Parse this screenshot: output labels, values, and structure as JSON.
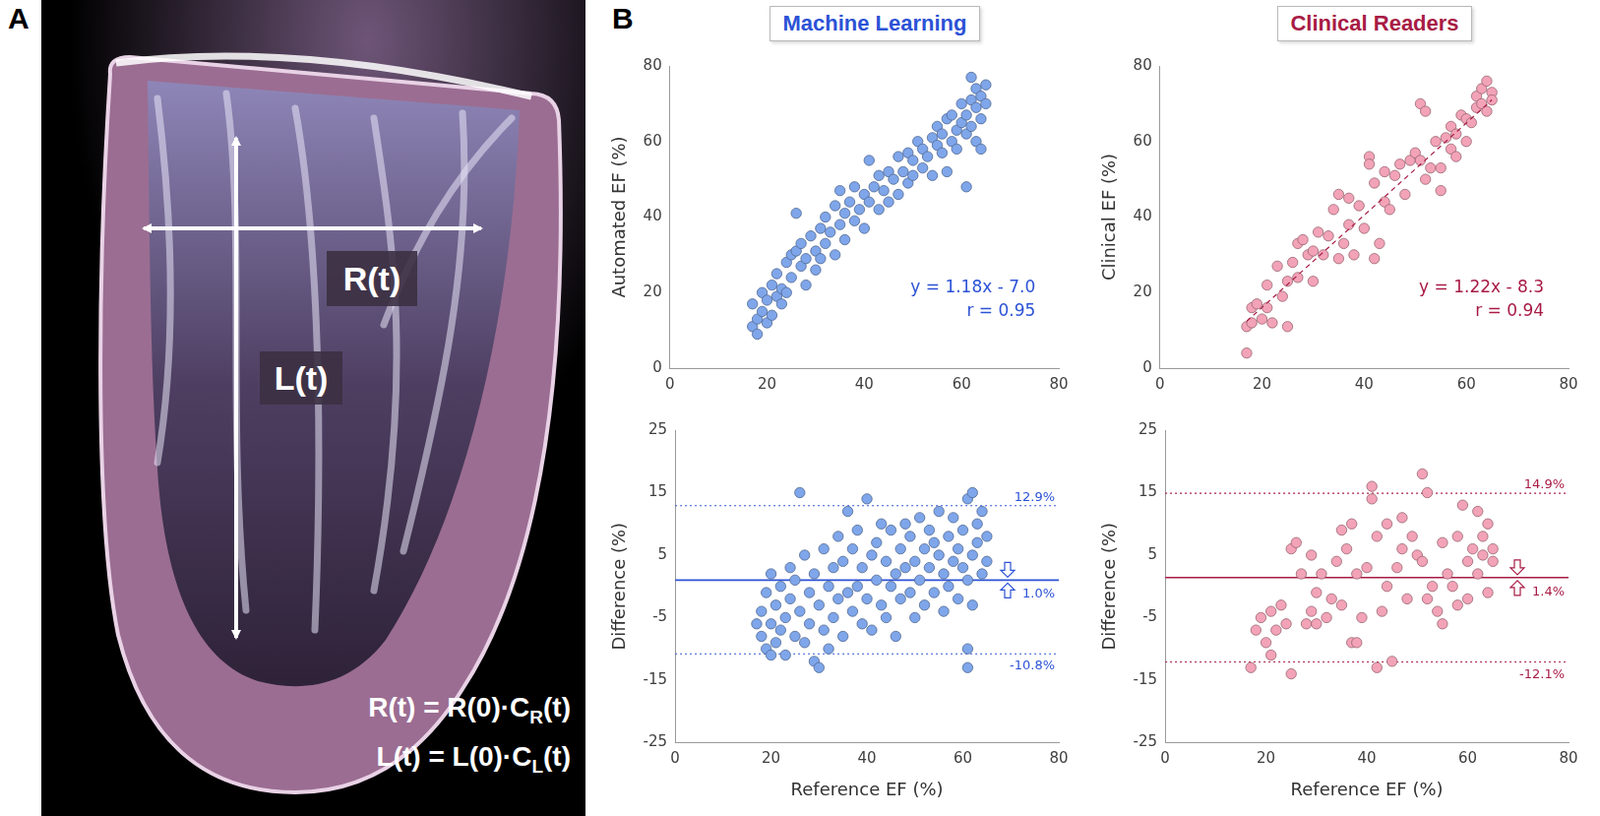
{
  "panel_labels": [
    "A",
    "B"
  ],
  "diagram": {
    "labels": [
      "R(t)",
      "L(t)"
    ],
    "equations": [
      {
        "text": "R(t) = R(0)·C",
        "subscript": "R",
        "after": "(t)"
      },
      {
        "text": "L(t) = L(0)·C",
        "subscript": "L",
        "after": "(t)"
      }
    ]
  },
  "chart_data": [
    {
      "type": "scatter",
      "title": "Machine Learning",
      "color": "#2c52d6",
      "y_label": "Automated EF (%)",
      "annotations": [
        "y = 1.18x - 7.0",
        "r = 0.95"
      ],
      "grid": false,
      "marker": "circle",
      "xlim": [
        0,
        80
      ],
      "xticks": [
        0,
        20,
        40,
        60,
        80
      ],
      "ylim": [
        0,
        80
      ],
      "yticks": [
        0,
        20,
        40,
        60,
        80
      ],
      "series": [
        {
          "color": "#7fa6ea",
          "x": [
            17,
            17,
            18,
            18,
            19,
            19,
            20,
            20,
            21,
            21,
            22,
            22,
            23,
            23,
            24,
            24,
            25,
            25,
            26,
            26,
            27,
            27,
            28,
            28,
            29,
            30,
            30,
            31,
            31,
            32,
            32,
            33,
            34,
            34,
            35,
            35,
            36,
            36,
            37,
            38,
            38,
            39,
            40,
            40,
            41,
            41,
            42,
            43,
            43,
            44,
            45,
            45,
            46,
            47,
            47,
            48,
            49,
            49,
            50,
            50,
            51,
            52,
            52,
            53,
            54,
            54,
            55,
            55,
            56,
            56,
            57,
            57,
            58,
            58,
            59,
            59,
            60,
            60,
            61,
            61,
            61,
            62,
            62,
            62,
            63,
            63,
            63,
            64,
            64,
            64,
            65,
            65
          ],
          "values": [
            11,
            17,
            13,
            9,
            15,
            20,
            12,
            18,
            22,
            14,
            19,
            25,
            17,
            21,
            28,
            20,
            30,
            24,
            41,
            31,
            27,
            33,
            29,
            22,
            35,
            31,
            26,
            37,
            29,
            33,
            40,
            36,
            30,
            43,
            38,
            47,
            41,
            34,
            44,
            39,
            48,
            42,
            46,
            37,
            55,
            44,
            48,
            42,
            51,
            47,
            52,
            44,
            50,
            56,
            46,
            52,
            49,
            57,
            55,
            51,
            60,
            53,
            58,
            56,
            61,
            51,
            59,
            64,
            57,
            62,
            66,
            52,
            60,
            67,
            63,
            58,
            65,
            70,
            48,
            62,
            67,
            77,
            64,
            71,
            60,
            69,
            74,
            66,
            72,
            58,
            70,
            75
          ]
        }
      ]
    },
    {
      "type": "scatter",
      "title": "Clinical Readers",
      "color": "#a81b45",
      "y_label": "Clinical EF (%)",
      "annotations": [
        "y = 1.22x - 8.3",
        "r = 0.94"
      ],
      "grid": false,
      "marker": "circle",
      "xlim": [
        0,
        80
      ],
      "xticks": [
        0,
        20,
        40,
        60,
        80
      ],
      "ylim": [
        0,
        80
      ],
      "yticks": [
        0,
        20,
        40,
        60,
        80
      ],
      "fit_line": {
        "x": [
          17,
          65
        ],
        "values": [
          12.4,
          71.0
        ],
        "line_style": "dashed"
      },
      "series": [
        {
          "color": "#f3a3b7",
          "x": [
            17,
            17,
            18,
            18,
            19,
            20,
            21,
            21,
            22,
            23,
            24,
            25,
            25,
            26,
            27,
            27,
            28,
            29,
            30,
            30,
            31,
            32,
            33,
            34,
            35,
            35,
            36,
            37,
            37,
            38,
            39,
            40,
            41,
            41,
            42,
            42,
            43,
            44,
            44,
            45,
            46,
            47,
            48,
            49,
            50,
            51,
            51,
            52,
            52,
            53,
            54,
            55,
            55,
            56,
            57,
            57,
            58,
            58,
            59,
            60,
            60,
            61,
            62,
            62,
            63,
            63,
            64,
            64,
            65,
            65
          ],
          "values": [
            4,
            11,
            16,
            12,
            17,
            13,
            22,
            16,
            12,
            27,
            19,
            23,
            11,
            28,
            33,
            24,
            34,
            30,
            23,
            31,
            36,
            30,
            35,
            42,
            29,
            46,
            33,
            45,
            38,
            30,
            43,
            37,
            56,
            54,
            49,
            29,
            33,
            44,
            52,
            42,
            51,
            54,
            46,
            55,
            57,
            55,
            70,
            68,
            50,
            53,
            60,
            53,
            47,
            61,
            58,
            64,
            62,
            56,
            67,
            60,
            66,
            65,
            72,
            69,
            74,
            70,
            68,
            76,
            73,
            71
          ]
        }
      ]
    },
    {
      "type": "scatter",
      "color": "#2c52d6",
      "x_label": "Reference EF (%)",
      "y_label": "Difference (%)",
      "grid": false,
      "marker": "circle",
      "xlim": [
        0,
        80
      ],
      "xticks": [
        0,
        20,
        40,
        60,
        80
      ],
      "ylim": [
        -25,
        25
      ],
      "yticks": [
        -25,
        -15,
        -5,
        5,
        15,
        25
      ],
      "reference_lines": [
        {
          "value": 12.9,
          "label": "12.9%",
          "line_style": "dotted"
        },
        {
          "value": 1.0,
          "label": "1.0%",
          "line_style": "solid"
        },
        {
          "value": -10.8,
          "label": "-10.8%",
          "line_style": "dotted"
        }
      ],
      "series": [
        {
          "color": "#7fa6ea",
          "x": [
            17,
            18,
            18,
            19,
            19,
            20,
            20,
            20,
            21,
            21,
            22,
            22,
            23,
            23,
            24,
            24,
            25,
            25,
            26,
            26,
            27,
            27,
            28,
            28,
            29,
            29,
            30,
            30,
            31,
            31,
            32,
            32,
            33,
            33,
            34,
            34,
            35,
            35,
            36,
            36,
            37,
            37,
            38,
            38,
            39,
            39,
            40,
            40,
            41,
            41,
            42,
            42,
            43,
            43,
            44,
            44,
            45,
            45,
            46,
            46,
            47,
            47,
            48,
            48,
            49,
            49,
            50,
            50,
            51,
            51,
            52,
            52,
            53,
            53,
            54,
            54,
            55,
            55,
            56,
            56,
            57,
            57,
            58,
            58,
            59,
            59,
            60,
            60,
            61,
            61,
            61,
            61,
            62,
            62,
            62,
            63,
            63,
            64,
            64,
            65,
            65
          ],
          "values": [
            -6,
            -8,
            -4,
            -10,
            -1,
            -11,
            -6,
            2,
            -3,
            -9,
            -7,
            0,
            -5,
            -11,
            -2,
            3,
            -8,
            1,
            15,
            -4,
            5,
            -9,
            -1,
            -6,
            2,
            -12,
            -3,
            -13,
            6,
            -7,
            0,
            -10,
            3,
            -5,
            8,
            -2,
            -8,
            4,
            12,
            -1,
            6,
            -4,
            0,
            9,
            -6,
            3,
            14,
            -2,
            5,
            -7,
            1,
            7,
            -3,
            10,
            4,
            -5,
            9,
            0,
            2,
            -8,
            6,
            -2,
            10,
            3,
            -1,
            8,
            4,
            -5,
            11,
            1,
            6,
            -3,
            3,
            9,
            7,
            -1,
            5,
            12,
            2,
            -4,
            8,
            0,
            11,
            4,
            -2,
            6,
            9,
            3,
            -13,
            -10,
            14,
            1,
            15,
            5,
            -3,
            7,
            10,
            2,
            12,
            4,
            8
          ]
        }
      ]
    },
    {
      "type": "scatter",
      "color": "#a81b45",
      "x_label": "Reference EF (%)",
      "y_label": "Difference (%)",
      "grid": false,
      "marker": "circle",
      "xlim": [
        0,
        80
      ],
      "xticks": [
        0,
        20,
        40,
        60,
        80
      ],
      "ylim": [
        -25,
        25
      ],
      "yticks": [
        -25,
        -15,
        -5,
        5,
        15,
        25
      ],
      "reference_lines": [
        {
          "value": 14.9,
          "label": "14.9%",
          "line_style": "dotted"
        },
        {
          "value": 1.4,
          "label": "1.4%",
          "line_style": "solid"
        },
        {
          "value": -12.1,
          "label": "-12.1%",
          "line_style": "dotted"
        }
      ],
      "series": [
        {
          "color": "#f3a3b7",
          "x": [
            17,
            18,
            19,
            20,
            21,
            21,
            22,
            23,
            24,
            25,
            25,
            26,
            27,
            28,
            29,
            29,
            30,
            30,
            31,
            32,
            33,
            34,
            35,
            35,
            36,
            37,
            37,
            38,
            38,
            39,
            40,
            41,
            41,
            42,
            42,
            43,
            44,
            44,
            45,
            46,
            47,
            47,
            48,
            49,
            50,
            51,
            51,
            52,
            52,
            53,
            54,
            55,
            55,
            56,
            57,
            58,
            58,
            59,
            60,
            60,
            61,
            62,
            62,
            63,
            63,
            64,
            64,
            65,
            65
          ],
          "values": [
            -13,
            -7,
            -5,
            -9,
            -4,
            -11,
            -7,
            -3,
            -6,
            -14,
            6,
            7,
            2,
            -6,
            -4,
            5,
            -1,
            -6,
            2,
            -5,
            -2,
            4,
            9,
            -3,
            6,
            10,
            -9,
            -9,
            2,
            -5,
            3,
            16,
            14,
            8,
            -13,
            -4,
            0,
            10,
            -12,
            3,
            11,
            6,
            -2,
            8,
            5,
            18,
            4,
            15,
            -2,
            0,
            -4,
            7,
            -6,
            2,
            0,
            -3,
            8,
            13,
            4,
            -2,
            6,
            12,
            2,
            5,
            8,
            -1,
            10,
            6,
            4
          ]
        }
      ]
    }
  ]
}
